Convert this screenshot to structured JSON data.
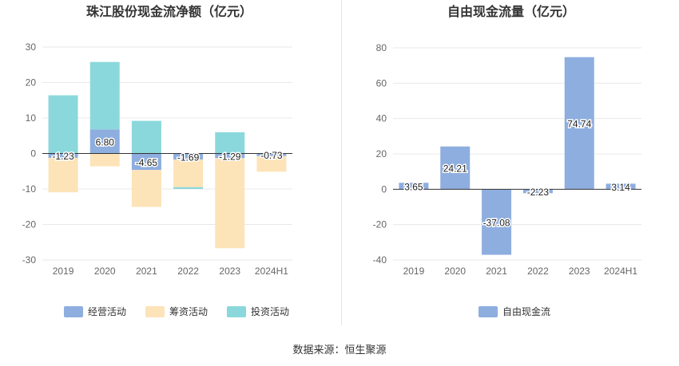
{
  "source_note": "数据来源：恒生聚源",
  "colors": {
    "operating": "#8eaedf",
    "financing": "#fde3b8",
    "investing": "#8bd8dc",
    "free_cash_flow": "#8eaedf",
    "grid": "#e8e8e8",
    "axis": "#333333",
    "tick": "#666666"
  },
  "chart_data": [
    {
      "type": "bar",
      "stacked": true,
      "title": "珠江股份现金流净额（亿元）",
      "categories": [
        "2019",
        "2020",
        "2021",
        "2022",
        "2023",
        "2024H1"
      ],
      "series": [
        {
          "name": "经营活动",
          "color_key": "operating",
          "values": [
            -1.23,
            6.8,
            -4.65,
            -1.69,
            -1.29,
            -0.73
          ],
          "labels": [
            "-1.23",
            "6.80",
            "-4.65",
            "-1.69",
            "-1.29",
            "-0.73"
          ]
        },
        {
          "name": "筹资活动",
          "color_key": "financing",
          "values": [
            -9.7,
            -3.6,
            -10.4,
            -7.8,
            -25.4,
            -4.4
          ]
        },
        {
          "name": "投资活动",
          "color_key": "investing",
          "values": [
            16.4,
            19.0,
            9.2,
            -0.5,
            6.0,
            0.0
          ]
        }
      ],
      "ylim": [
        -30,
        30
      ],
      "yticks": [
        30,
        20,
        10,
        0,
        -10,
        -20,
        -30
      ],
      "ytick_labels": [
        "30",
        "20",
        "10",
        "0",
        "-10",
        "-20",
        "-30"
      ],
      "grid": true,
      "legend_position": "bottom"
    },
    {
      "type": "bar",
      "title": "自由现金流量（亿元）",
      "categories": [
        "2019",
        "2020",
        "2021",
        "2022",
        "2023",
        "2024H1"
      ],
      "series": [
        {
          "name": "自由现金流",
          "color_key": "free_cash_flow",
          "values": [
            3.65,
            24.21,
            -37.08,
            -2.23,
            74.74,
            3.14
          ],
          "labels": [
            "3.65",
            "24.21",
            "-37.08",
            "-2.23",
            "74.74",
            "3.14"
          ]
        }
      ],
      "ylim": [
        -40,
        80
      ],
      "yticks": [
        80,
        60,
        40,
        20,
        0,
        -20,
        -40
      ],
      "ytick_labels": [
        "80",
        "60",
        "40",
        "20",
        "0",
        "-20",
        "-40"
      ],
      "grid": true,
      "legend_position": "bottom"
    }
  ]
}
